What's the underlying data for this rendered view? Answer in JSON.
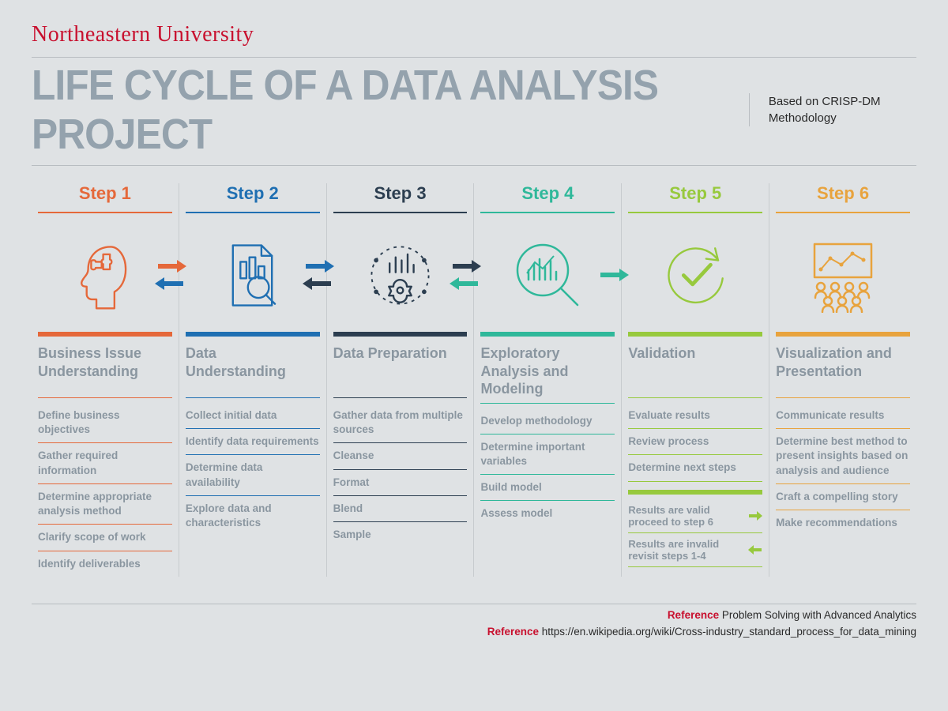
{
  "university": "Northeastern University",
  "title": "LIFE CYCLE OF A DATA ANALYSIS PROJECT",
  "subtitle": "Based on CRISP-DM Methodology",
  "colors": {
    "background": "#dfe2e4",
    "title_gray": "#94a2ad",
    "text_gray": "#8a96a0",
    "hr": "#b8bdc1",
    "red": "#c8102e"
  },
  "steps": [
    {
      "label": "Step 1",
      "color": "#e5683a",
      "title": "Business Issue Understanding",
      "icon": "head-puzzle",
      "tasks": [
        "Define business objectives",
        "Gather required information",
        "Determine appropriate analysis method",
        "Clarify scope of work",
        "Identify deliverables"
      ],
      "arrow_to_next": "both",
      "next_color": "#1f6fb2"
    },
    {
      "label": "Step 2",
      "color": "#1f6fb2",
      "title": "Data Understanding",
      "icon": "document-chart",
      "tasks": [
        "Collect initial data",
        "Identify data requirements",
        "Determine data availability",
        "Explore data and characteristics"
      ],
      "arrow_to_next": "both",
      "next_color": "#2c3e50"
    },
    {
      "label": "Step 3",
      "color": "#2c3e50",
      "title": "Data Preparation",
      "icon": "gear-chart",
      "tasks": [
        "Gather data from multiple sources",
        "Cleanse",
        "Format",
        "Blend",
        "Sample"
      ],
      "arrow_to_next": "both",
      "next_color": "#2fb89a"
    },
    {
      "label": "Step 4",
      "color": "#2fb89a",
      "title": "Exploratory Analysis and Modeling",
      "icon": "magnify-chart",
      "tasks": [
        "Develop methodology",
        "Determine important variables",
        "Build model",
        "Assess model"
      ],
      "arrow_to_next": "forward",
      "next_color": "#2fb89a"
    },
    {
      "label": "Step 5",
      "color": "#97c93d",
      "title": "Validation",
      "icon": "check-cycle",
      "tasks": [
        "Evaluate results",
        "Review process",
        "Determine next steps"
      ],
      "decisions": [
        {
          "text": "Results are valid proceed to step 6",
          "dir": "right"
        },
        {
          "text": "Results are invalid revisit steps 1-4",
          "dir": "left"
        }
      ]
    },
    {
      "label": "Step 6",
      "color": "#e8a33d",
      "title": "Visualization and Presentation",
      "icon": "presentation",
      "tasks": [
        "Communicate results",
        "Determine best method to present insights based on analysis and audience",
        "Craft a compelling story",
        "Make recommendations"
      ]
    }
  ],
  "references": [
    {
      "label": "Reference",
      "text": "Problem Solving with Advanced Analytics"
    },
    {
      "label": "Reference",
      "text": "https://en.wikipedia.org/wiki/Cross-industry_standard_process_for_data_mining"
    }
  ]
}
